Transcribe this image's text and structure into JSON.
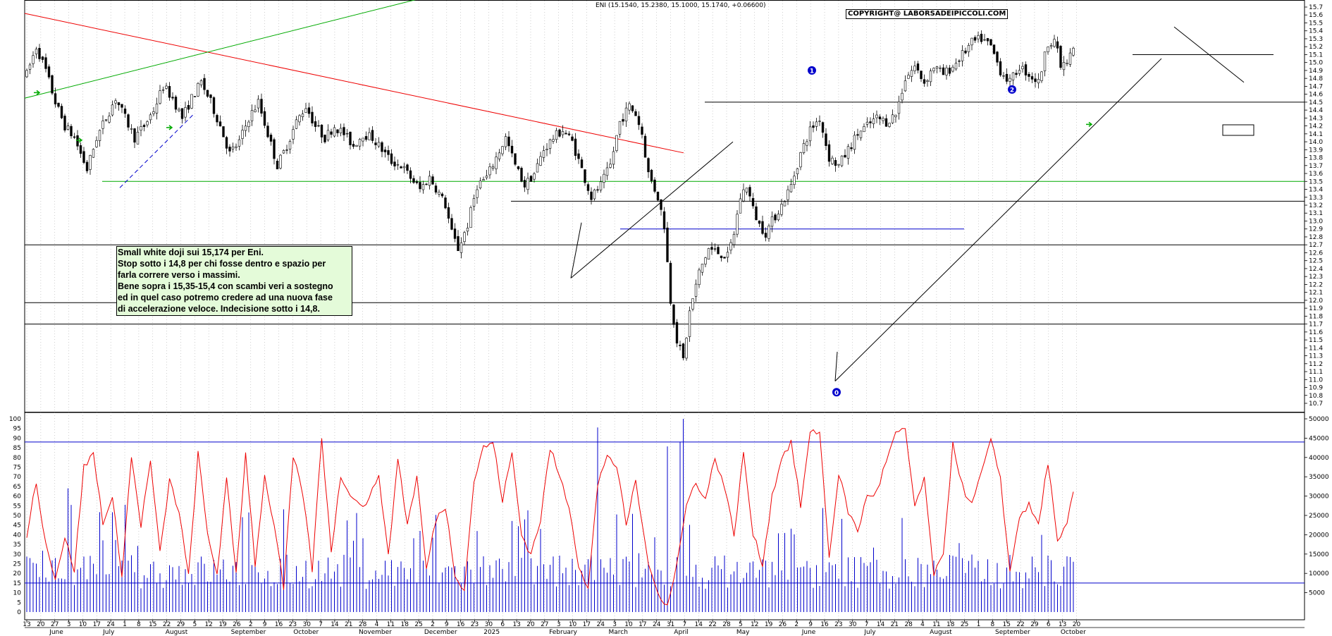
{
  "chart_data": {
    "type": "candlestick",
    "ticker_readout": "ENI (15.1540, 15.2380, 15.1000, 15.1740, +0.06600)",
    "copyright": "COPYRIGHT@ LABORSADEIPICCOLI.COM",
    "annotation": [
      "Small white doji sui 15,174 per Eni.",
      "Stop sotto i 14,8 per chi fosse dentro e spazio per",
      "farla correre verso i massimi.",
      "Bene sopra i 15,35-15,4 con scambi veri a sostegno",
      "ed in quel caso potremo credere ad una nuova fase",
      "di accelerazione veloce. Indecisione sotto i 14,8."
    ],
    "price_axis": {
      "min": 10.7,
      "max": 15.7,
      "step": 0.1,
      "ticks": [
        "15.7",
        "15.6",
        "15.5",
        "15.4",
        "15.3",
        "15.2",
        "15.1",
        "15.0",
        "14.9",
        "14.8",
        "14.7",
        "14.6",
        "14.5",
        "14.4",
        "14.3",
        "14.2",
        "14.1",
        "14.0",
        "13.9",
        "13.8",
        "13.7",
        "13.6",
        "13.5",
        "13.4",
        "13.3",
        "13.2",
        "13.1",
        "13.0",
        "12.9",
        "12.8",
        "12.7",
        "12.6",
        "12.5",
        "12.4",
        "12.3",
        "12.2",
        "12.1",
        "12.0",
        "11.9",
        "11.8",
        "11.7",
        "11.6",
        "11.5",
        "11.4",
        "11.3",
        "11.2",
        "11.1",
        "11.0",
        "10.9",
        "10.8",
        "10.7"
      ]
    },
    "oscillator_axis": {
      "min": 0,
      "max": 100,
      "ticks": [
        "100",
        "95",
        "90",
        "85",
        "80",
        "75",
        "70",
        "65",
        "60",
        "55",
        "50",
        "45",
        "40",
        "35",
        "30",
        "25",
        "20",
        "15",
        "10",
        "5",
        "0"
      ],
      "reference_levels": [
        88,
        15
      ]
    },
    "volume_axis": {
      "min": 0,
      "max": 50000,
      "ticks": [
        "50000",
        "45000",
        "40000",
        "35000",
        "30000",
        "25000",
        "20000",
        "15000",
        "10000",
        "5000"
      ]
    },
    "x_axis": {
      "days": [
        "13",
        "20",
        "27",
        "3",
        "10",
        "17",
        "24",
        "1",
        "8",
        "15",
        "22",
        "29",
        "5",
        "12",
        "19",
        "26",
        "2",
        "9",
        "16",
        "23",
        "30",
        "7",
        "14",
        "21",
        "28",
        "4",
        "11",
        "18",
        "25",
        "2",
        "9",
        "16",
        "23",
        "30",
        "6",
        "13",
        "20",
        "27",
        "3",
        "10",
        "17",
        "24",
        "3",
        "10",
        "17",
        "24",
        "31",
        "7",
        "14",
        "22",
        "28",
        "5",
        "12",
        "19",
        "26",
        "2",
        "9",
        "16",
        "23",
        "30",
        "7",
        "14",
        "21",
        "28",
        "4",
        "11",
        "18",
        "25",
        "1",
        "8",
        "15",
        "22",
        "29",
        "6",
        "13",
        "20"
      ],
      "months": [
        {
          "label": "June",
          "at": 10
        },
        {
          "label": "July",
          "at": 28
        },
        {
          "label": "August",
          "at": 49
        },
        {
          "label": "September",
          "at": 71
        },
        {
          "label": "October",
          "at": 92
        },
        {
          "label": "November",
          "at": 114
        },
        {
          "label": "December",
          "at": 136
        },
        {
          "label": "2025",
          "at": 156
        },
        {
          "label": "February",
          "at": 178
        },
        {
          "label": "March",
          "at": 198
        },
        {
          "label": "April",
          "at": 220
        },
        {
          "label": "May",
          "at": 241
        },
        {
          "label": "June",
          "at": 263
        },
        {
          "label": "July",
          "at": 284
        },
        {
          "label": "August",
          "at": 306
        },
        {
          "label": "September",
          "at": 328
        },
        {
          "label": "October",
          "at": 350
        }
      ]
    },
    "horizontal_levels": [
      {
        "price": 14.5,
        "color": "#000000"
      },
      {
        "price": 13.5,
        "color": "#00aa00"
      },
      {
        "price": 13.25,
        "color": "#000000"
      },
      {
        "price": 12.9,
        "color": "#0000cc"
      },
      {
        "price": 12.7,
        "color": "#000000"
      },
      {
        "price": 11.97,
        "color": "#000000"
      },
      {
        "price": 11.7,
        "color": "#000000"
      },
      {
        "price": 15.1,
        "color": "#000000"
      }
    ],
    "wave_labels": [
      "0",
      "1",
      "2"
    ],
    "colors": {
      "candle_up": "#ffffff",
      "candle_down": "#000000",
      "oscillator": "#ee0000",
      "volume": "#0000cc",
      "support_green": "#00aa00",
      "trend_red": "#ee0000",
      "label_blue": "#0000cc",
      "annotation_bg": "#e4fbd9"
    },
    "series": [
      {
        "name": "price_path",
        "anchors": [
          [
            0,
            14.85
          ],
          [
            3,
            15.2
          ],
          [
            6,
            14.9
          ],
          [
            9,
            14.5
          ],
          [
            12,
            14.2
          ],
          [
            15,
            14.05
          ],
          [
            19,
            13.65
          ],
          [
            22,
            14.05
          ],
          [
            25,
            14.3
          ],
          [
            28,
            14.55
          ],
          [
            31,
            14.3
          ],
          [
            34,
            14.05
          ],
          [
            37,
            14.2
          ],
          [
            40,
            14.4
          ],
          [
            43,
            14.7
          ],
          [
            46,
            14.55
          ],
          [
            49,
            14.3
          ],
          [
            52,
            14.55
          ],
          [
            55,
            14.75
          ],
          [
            58,
            14.5
          ],
          [
            61,
            14.2
          ],
          [
            64,
            13.85
          ],
          [
            67,
            14.0
          ],
          [
            70,
            14.3
          ],
          [
            73,
            14.5
          ],
          [
            76,
            14.1
          ],
          [
            79,
            13.7
          ],
          [
            82,
            13.95
          ],
          [
            85,
            14.25
          ],
          [
            88,
            14.45
          ],
          [
            91,
            14.2
          ],
          [
            94,
            14.05
          ],
          [
            97,
            14.2
          ],
          [
            100,
            14.1
          ],
          [
            103,
            13.95
          ],
          [
            106,
            14.1
          ],
          [
            109,
            14.05
          ],
          [
            112,
            13.9
          ],
          [
            115,
            13.75
          ],
          [
            118,
            13.7
          ],
          [
            121,
            13.55
          ],
          [
            124,
            13.4
          ],
          [
            127,
            13.55
          ],
          [
            130,
            13.35
          ],
          [
            132,
            13.2
          ],
          [
            134,
            12.85
          ],
          [
            136,
            12.65
          ],
          [
            139,
            12.95
          ],
          [
            142,
            13.45
          ],
          [
            145,
            13.55
          ],
          [
            148,
            13.8
          ],
          [
            151,
            14.05
          ],
          [
            154,
            13.7
          ],
          [
            157,
            13.45
          ],
          [
            160,
            13.6
          ],
          [
            163,
            13.9
          ],
          [
            166,
            14.05
          ],
          [
            169,
            14.15
          ],
          [
            172,
            14.0
          ],
          [
            175,
            13.65
          ],
          [
            178,
            13.3
          ],
          [
            181,
            13.45
          ],
          [
            184,
            13.7
          ],
          [
            187,
            14.25
          ],
          [
            190,
            14.45
          ],
          [
            192,
            14.35
          ],
          [
            194,
            14.1
          ],
          [
            196,
            13.6
          ],
          [
            199,
            13.3
          ],
          [
            201,
            12.95
          ],
          [
            203,
            12.0
          ],
          [
            205,
            11.5
          ],
          [
            207,
            11.25
          ],
          [
            209,
            11.85
          ],
          [
            212,
            12.35
          ],
          [
            215,
            12.65
          ],
          [
            218,
            12.6
          ],
          [
            221,
            12.55
          ],
          [
            223,
            12.85
          ],
          [
            225,
            13.3
          ],
          [
            227,
            13.45
          ],
          [
            229,
            13.15
          ],
          [
            231,
            12.95
          ],
          [
            233,
            12.85
          ],
          [
            235,
            13.0
          ],
          [
            238,
            13.2
          ],
          [
            241,
            13.45
          ],
          [
            244,
            13.85
          ],
          [
            247,
            14.15
          ],
          [
            250,
            14.3
          ],
          [
            253,
            13.8
          ],
          [
            256,
            13.7
          ],
          [
            259,
            13.9
          ],
          [
            262,
            14.1
          ],
          [
            265,
            14.2
          ],
          [
            268,
            14.3
          ],
          [
            271,
            14.25
          ],
          [
            274,
            14.35
          ],
          [
            277,
            14.8
          ],
          [
            280,
            14.95
          ],
          [
            283,
            14.75
          ],
          [
            286,
            14.95
          ],
          [
            289,
            14.85
          ],
          [
            292,
            14.95
          ],
          [
            295,
            15.1
          ],
          [
            298,
            15.25
          ],
          [
            301,
            15.3
          ],
          [
            304,
            15.2
          ],
          [
            307,
            14.9
          ],
          [
            310,
            14.75
          ],
          [
            313,
            14.95
          ],
          [
            316,
            14.85
          ],
          [
            319,
            14.75
          ],
          [
            322,
            15.25
          ],
          [
            324,
            15.3
          ],
          [
            326,
            14.95
          ],
          [
            328,
            15.0
          ],
          [
            330,
            15.17
          ]
        ]
      },
      {
        "name": "oscillator_path",
        "anchors": [
          [
            0,
            40
          ],
          [
            3,
            68
          ],
          [
            6,
            35
          ],
          [
            9,
            18
          ],
          [
            12,
            38
          ],
          [
            15,
            22
          ],
          [
            18,
            75
          ],
          [
            21,
            82
          ],
          [
            24,
            47
          ],
          [
            27,
            58
          ],
          [
            30,
            20
          ],
          [
            33,
            80
          ],
          [
            36,
            45
          ],
          [
            39,
            78
          ],
          [
            42,
            30
          ],
          [
            45,
            68
          ],
          [
            48,
            52
          ],
          [
            51,
            18
          ],
          [
            54,
            82
          ],
          [
            57,
            40
          ],
          [
            60,
            20
          ],
          [
            63,
            68
          ],
          [
            66,
            20
          ],
          [
            69,
            82
          ],
          [
            72,
            25
          ],
          [
            75,
            70
          ],
          [
            78,
            45
          ],
          [
            81,
            12
          ],
          [
            84,
            80
          ],
          [
            87,
            62
          ],
          [
            90,
            22
          ],
          [
            93,
            90
          ],
          [
            96,
            32
          ],
          [
            99,
            70
          ],
          [
            102,
            62
          ],
          [
            105,
            55
          ],
          [
            108,
            58
          ],
          [
            111,
            72
          ],
          [
            114,
            28
          ],
          [
            117,
            80
          ],
          [
            120,
            45
          ],
          [
            123,
            70
          ],
          [
            126,
            22
          ],
          [
            129,
            48
          ],
          [
            132,
            55
          ],
          [
            135,
            20
          ],
          [
            138,
            12
          ],
          [
            141,
            68
          ],
          [
            144,
            85
          ],
          [
            147,
            88
          ],
          [
            150,
            58
          ],
          [
            153,
            82
          ],
          [
            156,
            40
          ],
          [
            159,
            30
          ],
          [
            162,
            48
          ],
          [
            165,
            85
          ],
          [
            168,
            70
          ],
          [
            171,
            55
          ],
          [
            174,
            25
          ],
          [
            177,
            12
          ],
          [
            180,
            65
          ],
          [
            183,
            82
          ],
          [
            186,
            75
          ],
          [
            189,
            45
          ],
          [
            192,
            68
          ],
          [
            195,
            35
          ],
          [
            197,
            18
          ],
          [
            199,
            10
          ],
          [
            202,
            4
          ],
          [
            205,
            25
          ],
          [
            208,
            55
          ],
          [
            211,
            68
          ],
          [
            214,
            58
          ],
          [
            217,
            80
          ],
          [
            220,
            65
          ],
          [
            223,
            40
          ],
          [
            226,
            82
          ],
          [
            229,
            40
          ],
          [
            232,
            25
          ],
          [
            235,
            60
          ],
          [
            238,
            80
          ],
          [
            241,
            88
          ],
          [
            244,
            55
          ],
          [
            247,
            92
          ],
          [
            250,
            94
          ],
          [
            253,
            28
          ],
          [
            256,
            72
          ],
          [
            259,
            52
          ],
          [
            262,
            42
          ],
          [
            265,
            60
          ],
          [
            268,
            62
          ],
          [
            271,
            78
          ],
          [
            274,
            92
          ],
          [
            277,
            94
          ],
          [
            280,
            55
          ],
          [
            283,
            68
          ],
          [
            286,
            20
          ],
          [
            289,
            28
          ],
          [
            292,
            88
          ],
          [
            295,
            65
          ],
          [
            298,
            55
          ],
          [
            301,
            72
          ],
          [
            304,
            88
          ],
          [
            307,
            70
          ],
          [
            310,
            20
          ],
          [
            313,
            50
          ],
          [
            316,
            55
          ],
          [
            319,
            45
          ],
          [
            322,
            78
          ],
          [
            325,
            35
          ],
          [
            328,
            45
          ],
          [
            330,
            63
          ]
        ]
      }
    ]
  }
}
